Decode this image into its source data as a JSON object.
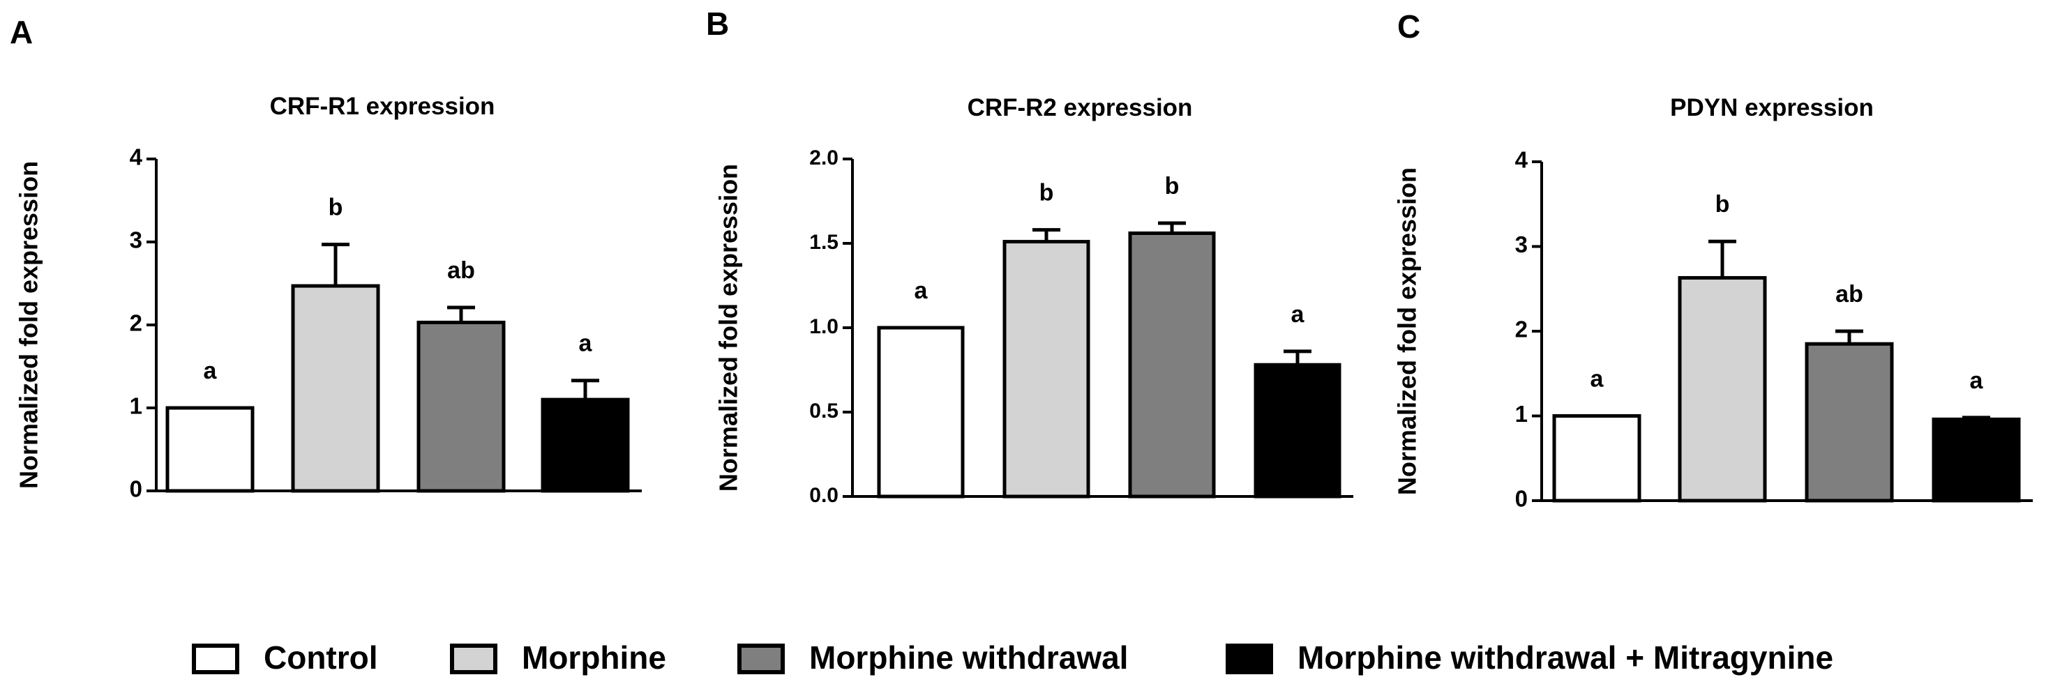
{
  "chart_data": [
    {
      "panel_label": "A",
      "type": "bar",
      "title": "CRF-R1 expression",
      "ylabel": "Normalized fold expression",
      "xlabel": "",
      "ylim": [
        0,
        4
      ],
      "yticks": [
        0,
        1,
        2,
        3,
        4
      ],
      "ytick_labels": [
        "0",
        "1",
        "2",
        "3",
        "4"
      ],
      "categories": [
        "Control",
        "Morphine",
        "Morphine withdrawal",
        "Morphine withdrawal + Mitragynine"
      ],
      "values": [
        1.0,
        2.47,
        2.03,
        1.1
      ],
      "errors": [
        0,
        0.5,
        0.18,
        0.23
      ],
      "significance": [
        "a",
        "b",
        "ab",
        "a"
      ]
    },
    {
      "panel_label": "B",
      "type": "bar",
      "title": "CRF-R2 expression",
      "ylabel": "Normalized fold expression",
      "xlabel": "",
      "ylim": [
        0,
        2.0
      ],
      "yticks": [
        0,
        0.5,
        1.0,
        1.5,
        2.0
      ],
      "ytick_labels": [
        "0.0",
        "0.5",
        "1.0",
        "1.5",
        "2.0"
      ],
      "categories": [
        "Control",
        "Morphine",
        "Morphine withdrawal",
        "Morphine withdrawal + Mitragynine"
      ],
      "values": [
        1.0,
        1.51,
        1.56,
        0.78
      ],
      "errors": [
        0,
        0.07,
        0.06,
        0.08
      ],
      "significance": [
        "a",
        "b",
        "b",
        "a"
      ]
    },
    {
      "panel_label": "C",
      "type": "bar",
      "title": "PDYN expression",
      "ylabel": "Normalized fold expression",
      "xlabel": "",
      "ylim": [
        0,
        4
      ],
      "yticks": [
        0,
        1,
        2,
        3,
        4
      ],
      "ytick_labels": [
        "0",
        "1",
        "2",
        "3",
        "4"
      ],
      "categories": [
        "Control",
        "Morphine",
        "Morphine withdrawal",
        "Morphine withdrawal + Mitragynine"
      ],
      "values": [
        1.0,
        2.63,
        1.85,
        0.96
      ],
      "errors": [
        0,
        0.43,
        0.15,
        0.02
      ],
      "significance": [
        "a",
        "b",
        "ab",
        "a"
      ]
    }
  ],
  "legend": {
    "position": "bottom",
    "items": [
      {
        "label": "Control",
        "color": "#ffffff"
      },
      {
        "label": "Morphine",
        "color": "#d3d3d3"
      },
      {
        "label": "Morphine withdrawal",
        "color": "#7f7f7f"
      },
      {
        "label": "Morphine withdrawal + Mitragynine",
        "color": "#000000"
      }
    ]
  }
}
